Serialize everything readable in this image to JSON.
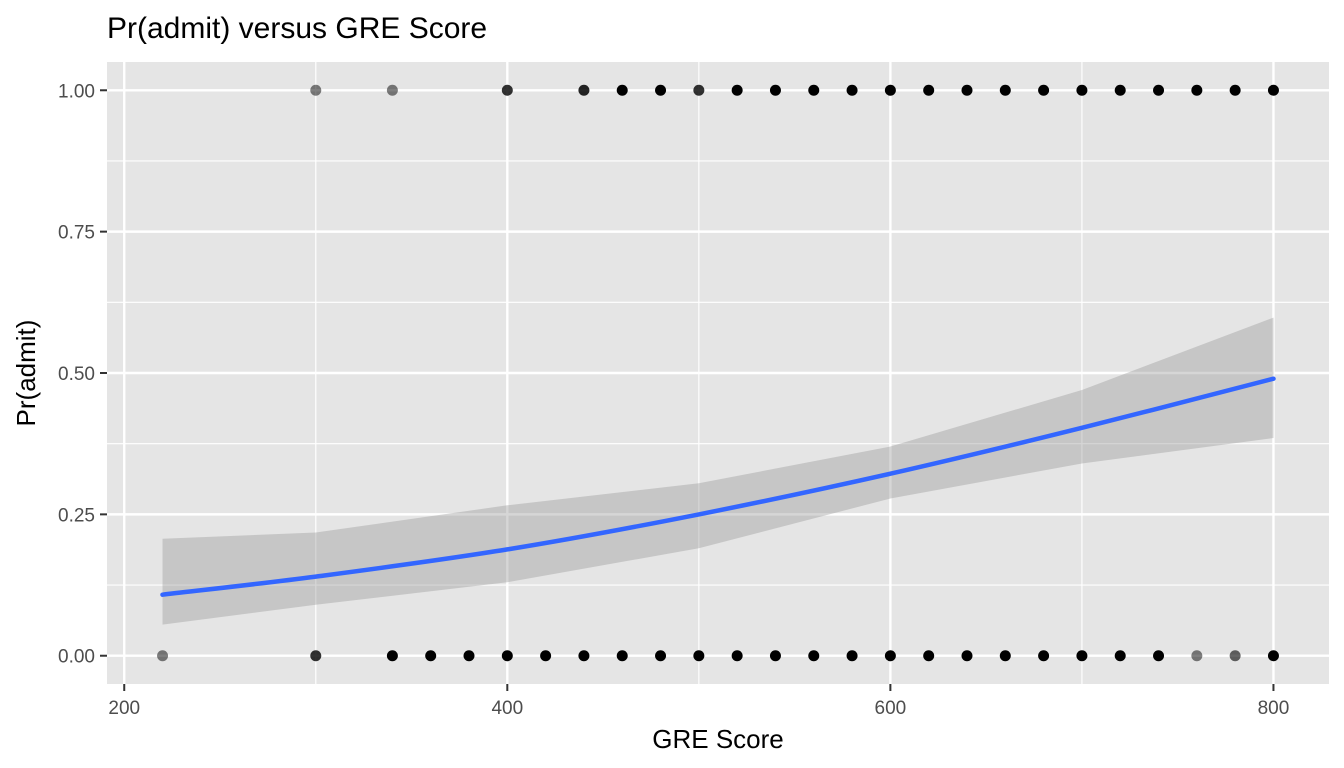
{
  "chart_data": {
    "type": "scatter",
    "title": "Pr(admit) versus GRE Score",
    "xlabel": "GRE Score",
    "ylabel": "Pr(admit)",
    "xlim": [
      191,
      829
    ],
    "ylim": [
      -0.05,
      1.05
    ],
    "x_ticks": [
      200,
      400,
      600,
      800
    ],
    "x_tick_labels": [
      "200",
      "400",
      "600",
      "800"
    ],
    "y_ticks": [
      0,
      0.25,
      0.5,
      0.75,
      1
    ],
    "y_tick_labels": [
      "0.00",
      "0.25",
      "0.50",
      "0.75",
      "1.00"
    ],
    "grid": true,
    "colors": {
      "panel": "#e5e5e5",
      "grid": "#ffffff",
      "points": "#000000",
      "fit_line": "#3366ff",
      "ribbon": "#999999"
    },
    "points": {
      "x_admitted": [
        300,
        340,
        400,
        440,
        460,
        480,
        500,
        520,
        540,
        560,
        580,
        600,
        620,
        640,
        660,
        680,
        700,
        720,
        740,
        760,
        780,
        800
      ],
      "opacity_admitted": [
        0.5,
        0.5,
        0.8,
        0.85,
        1,
        1,
        0.8,
        1,
        1,
        1,
        1,
        1,
        1,
        1,
        1,
        1,
        1,
        1,
        1,
        1,
        1,
        1
      ],
      "x_not_admitted": [
        220,
        300,
        340,
        360,
        380,
        400,
        420,
        440,
        460,
        480,
        500,
        520,
        540,
        560,
        580,
        600,
        620,
        640,
        660,
        680,
        700,
        720,
        740,
        760,
        780,
        800
      ],
      "opacity_not_admitted": [
        0.5,
        0.8,
        1,
        1,
        1,
        1,
        1,
        1,
        1,
        1,
        1,
        1,
        1,
        1,
        1,
        1,
        1,
        1,
        1,
        1,
        1,
        1,
        1,
        0.5,
        0.6,
        1
      ]
    },
    "series": [
      {
        "x": [
          220,
          300,
          400,
          500,
          600,
          700,
          800
        ],
        "y": [
          0.108,
          0.14,
          0.188,
          0.25,
          0.322,
          0.403,
          0.49
        ],
        "ci_lower": [
          0.055,
          0.09,
          0.13,
          0.19,
          0.278,
          0.34,
          0.385
        ],
        "ci_upper": [
          0.207,
          0.218,
          0.266,
          0.305,
          0.37,
          0.47,
          0.598
        ]
      }
    ]
  }
}
